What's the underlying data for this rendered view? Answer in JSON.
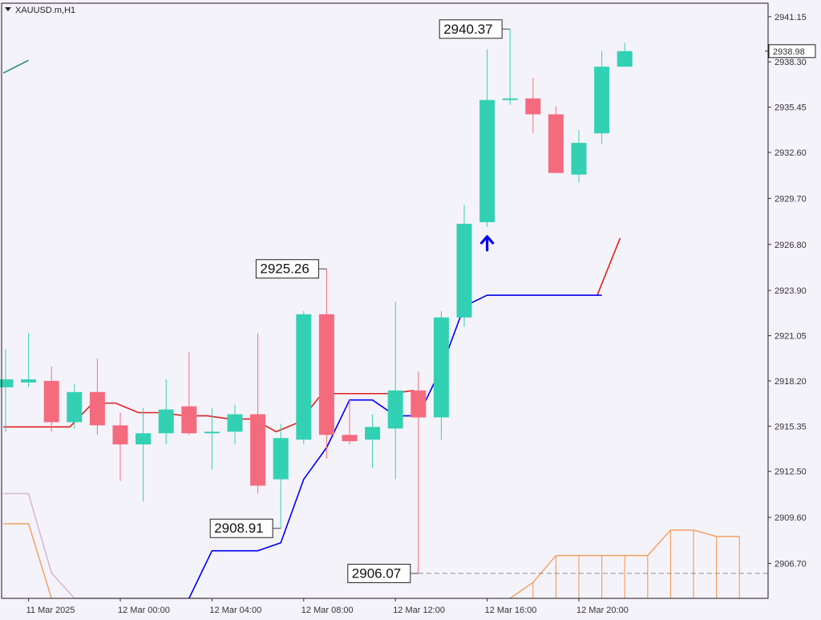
{
  "window": {
    "title": "XAUUSD.m,H1"
  },
  "colors": {
    "background": "#f5f3fa",
    "grid": "#d9d7e4",
    "bull": "#33d1b4",
    "bear": "#f56b7e",
    "line_blue": "#0000ee",
    "line_red": "#e02020",
    "cloud_orange": "#f2a264",
    "lilac": "#d6b6d0",
    "teal": "#1f8a84",
    "axis_text": "#333333"
  },
  "chart_data": {
    "type": "candlestick",
    "symbol": "XAUUSD.m",
    "timeframe": "H1",
    "ylim": [
      2904.5,
      2942.0
    ],
    "y_ticks": [
      "2941.15",
      "2938.30",
      "2935.45",
      "2932.60",
      "2929.70",
      "2926.80",
      "2923.90",
      "2921.05",
      "2918.20",
      "2915.35",
      "2912.50",
      "2909.60",
      "2906.70"
    ],
    "x_labels": [
      {
        "label": "11 Mar 2025",
        "index": 1
      },
      {
        "label": "12 Mar 00:00",
        "index": 5
      },
      {
        "label": "12 Mar 04:00",
        "index": 9
      },
      {
        "label": "12 Mar 08:00",
        "index": 13
      },
      {
        "label": "12 Mar 12:00",
        "index": 17
      },
      {
        "label": "12 Mar 16:00",
        "index": 21
      },
      {
        "label": "12 Mar 20:00",
        "index": 25
      }
    ],
    "current_price": "2938.98",
    "candles": [
      {
        "o": 2917.8,
        "h": 2920.2,
        "l": 2915.0,
        "c": 2918.3
      },
      {
        "o": 2918.1,
        "h": 2921.2,
        "l": 2917.8,
        "c": 2918.3
      },
      {
        "o": 2918.2,
        "h": 2919.1,
        "l": 2915.0,
        "c": 2915.6
      },
      {
        "o": 2915.6,
        "h": 2918.0,
        "l": 2915.2,
        "c": 2917.5
      },
      {
        "o": 2917.5,
        "h": 2919.6,
        "l": 2914.8,
        "c": 2915.4
      },
      {
        "o": 2915.4,
        "h": 2916.2,
        "l": 2911.9,
        "c": 2914.2
      },
      {
        "o": 2914.2,
        "h": 2916.5,
        "l": 2910.6,
        "c": 2914.9
      },
      {
        "o": 2914.9,
        "h": 2918.3,
        "l": 2914.2,
        "c": 2916.4
      },
      {
        "o": 2916.6,
        "h": 2920.0,
        "l": 2914.8,
        "c": 2914.9
      },
      {
        "o": 2915.0,
        "h": 2916.5,
        "l": 2912.6,
        "c": 2915.0
      },
      {
        "o": 2915.0,
        "h": 2916.7,
        "l": 2914.2,
        "c": 2916.1
      },
      {
        "o": 2916.1,
        "h": 2921.2,
        "l": 2911.1,
        "c": 2911.6
      },
      {
        "o": 2912.0,
        "h": 2915.5,
        "l": 2908.91,
        "c": 2914.6
      },
      {
        "o": 2914.5,
        "h": 2922.6,
        "l": 2914.2,
        "c": 2922.4
      },
      {
        "o": 2922.4,
        "h": 2925.26,
        "l": 2913.3,
        "c": 2914.8
      },
      {
        "o": 2914.8,
        "h": 2917.0,
        "l": 2914.2,
        "c": 2914.4
      },
      {
        "o": 2914.5,
        "h": 2916.1,
        "l": 2912.7,
        "c": 2915.3
      },
      {
        "o": 2915.2,
        "h": 2923.2,
        "l": 2912.0,
        "c": 2917.6
      },
      {
        "o": 2917.6,
        "h": 2918.8,
        "l": 2906.07,
        "c": 2915.9
      },
      {
        "o": 2915.9,
        "h": 2922.6,
        "l": 2914.5,
        "c": 2922.2
      },
      {
        "o": 2922.2,
        "h": 2929.3,
        "l": 2921.6,
        "c": 2928.1
      },
      {
        "o": 2928.2,
        "h": 2939.1,
        "l": 2927.9,
        "c": 2935.9
      },
      {
        "o": 2935.9,
        "h": 2940.37,
        "l": 2935.6,
        "c": 2936.0
      },
      {
        "o": 2936.0,
        "h": 2937.3,
        "l": 2933.8,
        "c": 2935.0
      },
      {
        "o": 2935.0,
        "h": 2935.5,
        "l": 2931.4,
        "c": 2931.3
      },
      {
        "o": 2931.2,
        "h": 2934.0,
        "l": 2930.7,
        "c": 2933.2
      },
      {
        "o": 2933.8,
        "h": 2939.0,
        "l": 2933.1,
        "c": 2938.0
      },
      {
        "o": 2938.0,
        "h": 2939.5,
        "l": 2938.0,
        "c": 2938.98
      }
    ],
    "annotations": [
      {
        "label": "2940.37",
        "price": 2940.37,
        "index": 22,
        "side": "left"
      },
      {
        "label": "2925.26",
        "price": 2925.26,
        "index": 14,
        "side": "left"
      },
      {
        "label": "2908.91",
        "price": 2908.91,
        "index": 12,
        "side": "left"
      },
      {
        "label": "2906.07",
        "price": 2906.07,
        "index": 18,
        "side": "left"
      }
    ],
    "signal_arrow": {
      "index": 21,
      "price": 2927.5,
      "direction": "up"
    },
    "overlays": {
      "blue_line": [
        {
          "i": 8,
          "p": 2904.5
        },
        {
          "i": 9,
          "p": 2907.5
        },
        {
          "i": 10,
          "p": 2907.5
        },
        {
          "i": 11,
          "p": 2907.5
        },
        {
          "i": 12,
          "p": 2908.0
        },
        {
          "i": 13,
          "p": 2912.0
        },
        {
          "i": 14,
          "p": 2914.0
        },
        {
          "i": 15,
          "p": 2917.0
        },
        {
          "i": 16,
          "p": 2917.0
        },
        {
          "i": 17,
          "p": 2916.0
        },
        {
          "i": 18,
          "p": 2916.0
        },
        {
          "i": 19,
          "p": 2919.0
        },
        {
          "i": 20,
          "p": 2922.9
        },
        {
          "i": 21,
          "p": 2923.6
        },
        {
          "i": 22,
          "p": 2923.6
        },
        {
          "i": 23,
          "p": 2923.6
        },
        {
          "i": 24,
          "p": 2923.6
        },
        {
          "i": 25,
          "p": 2923.6
        },
        {
          "i": 26,
          "p": 2923.6
        }
      ],
      "red_line": [
        {
          "i": -0.1,
          "p": 2915.3
        },
        {
          "i": 2.8,
          "p": 2915.3
        },
        {
          "i": 3.8,
          "p": 2916.8
        },
        {
          "i": 4.8,
          "p": 2916.8
        },
        {
          "i": 5.8,
          "p": 2916.2
        },
        {
          "i": 6.8,
          "p": 2916.2
        },
        {
          "i": 7.8,
          "p": 2916.0
        },
        {
          "i": 8.8,
          "p": 2916.0
        },
        {
          "i": 9.8,
          "p": 2915.8
        },
        {
          "i": 10.8,
          "p": 2915.8
        },
        {
          "i": 11.8,
          "p": 2915.0
        },
        {
          "i": 12.8,
          "p": 2915.6
        },
        {
          "i": 13.8,
          "p": 2917.4
        },
        {
          "i": 16.8,
          "p": 2917.4
        },
        {
          "i": 17.8,
          "p": 2917.6
        }
      ],
      "red_tail": [
        {
          "i": 25.8,
          "p": 2923.6
        },
        {
          "i": 26.8,
          "p": 2927.2
        }
      ],
      "teal_line": [
        {
          "i": -0.1,
          "p": 2937.6
        },
        {
          "i": 1.0,
          "p": 2938.4
        }
      ],
      "lilac_line": [
        {
          "i": -0.1,
          "p": 2911.1
        },
        {
          "i": 1.0,
          "p": 2911.1
        },
        {
          "i": 2.0,
          "p": 2906.1
        },
        {
          "i": 3.0,
          "p": 2904.5
        },
        {
          "i": 8.8,
          "p": 2904.5
        }
      ],
      "orange_edge": [
        {
          "i": -0.1,
          "p": 2909.2
        },
        {
          "i": 1.0,
          "p": 2909.2
        },
        {
          "i": 2.0,
          "p": 2904.5
        }
      ],
      "orange_cloud_upper": [
        {
          "i": 22.0,
          "p": 2904.5
        },
        {
          "i": 23.0,
          "p": 2905.5
        },
        {
          "i": 24.0,
          "p": 2907.2
        },
        {
          "i": 25.0,
          "p": 2907.2
        },
        {
          "i": 26.0,
          "p": 2907.2
        },
        {
          "i": 27.0,
          "p": 2907.2
        },
        {
          "i": 28.0,
          "p": 2907.2
        },
        {
          "i": 29.0,
          "p": 2908.8
        },
        {
          "i": 30.0,
          "p": 2908.8
        },
        {
          "i": 31.0,
          "p": 2908.4
        },
        {
          "i": 32.0,
          "p": 2908.4
        }
      ]
    }
  }
}
